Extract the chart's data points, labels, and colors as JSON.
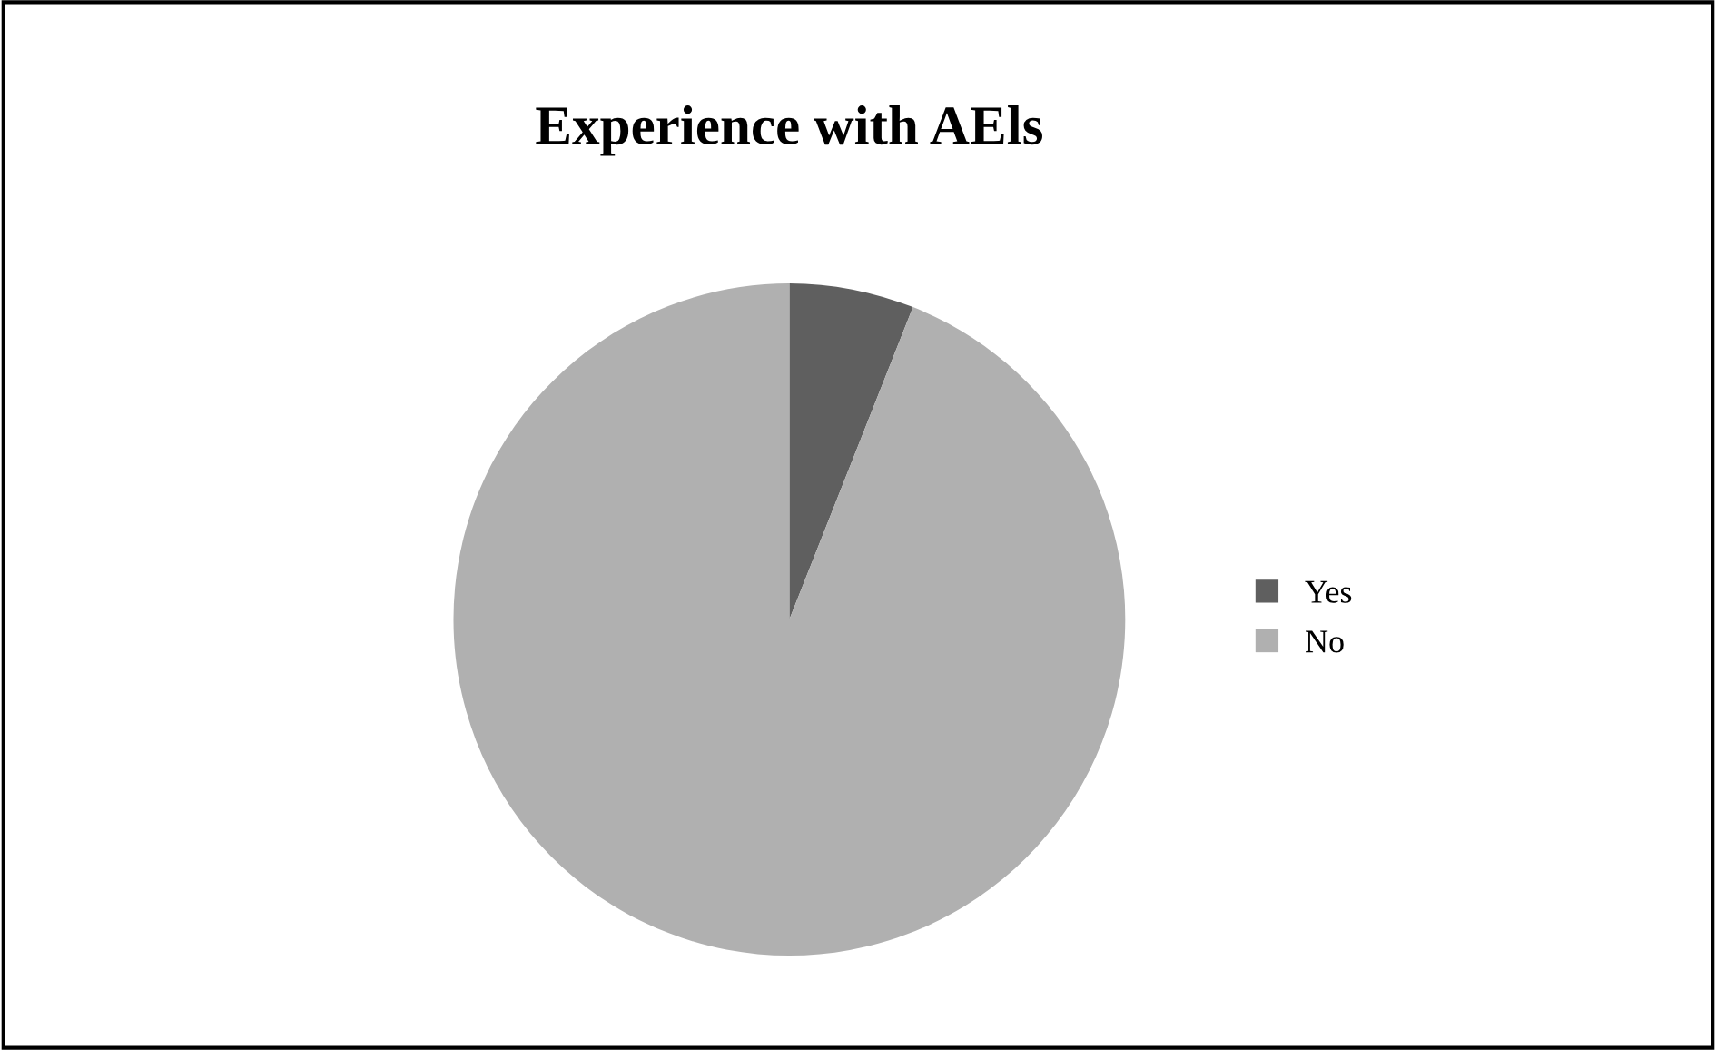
{
  "chart_data": {
    "type": "pie",
    "title": "Experience with AEls",
    "categories": [
      "Yes",
      "No"
    ],
    "values": [
      6,
      94
    ],
    "colors": [
      "#5f5f5f",
      "#b0b0b0"
    ],
    "legend": "right"
  }
}
